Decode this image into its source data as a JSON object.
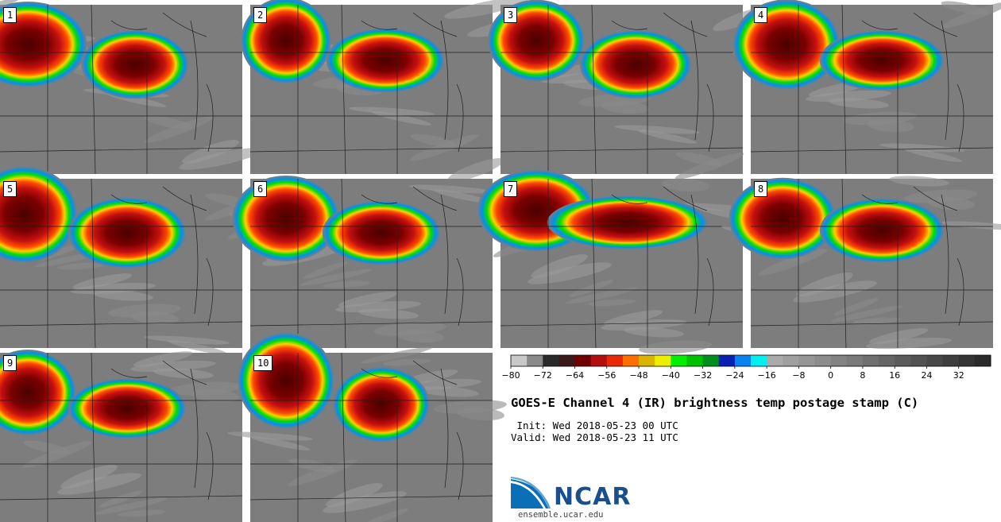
{
  "title": "GOES-E Channel 4 (IR) brightness temp postage stamp (C)",
  "init": " Init: Wed 2018-05-23 00 UTC",
  "valid": "Valid: Wed 2018-05-23 11 UTC",
  "logo": {
    "name": "NCAR",
    "url": "ensemble.ucar.edu"
  },
  "panels": [
    "1",
    "2",
    "3",
    "4",
    "5",
    "6",
    "7",
    "8",
    "9",
    "10"
  ],
  "chart_data": {
    "type": "heatmap",
    "colorbar": {
      "ticks": [
        -80,
        -72,
        -64,
        -56,
        -48,
        -40,
        -32,
        -24,
        -16,
        -8,
        0,
        8,
        16,
        24,
        32
      ],
      "range": [
        -80,
        40
      ],
      "step": 4,
      "colors": [
        "#c8c8c8",
        "#8a8a8a",
        "#2a2a2a",
        "#3d1a1a",
        "#700000",
        "#b40f0f",
        "#e82a0a",
        "#ff6e00",
        "#d9b400",
        "#eeee00",
        "#00f000",
        "#00c000",
        "#008f1e",
        "#0a1fb4",
        "#0a82f0",
        "#00f0f0",
        "#aaaaaa",
        "#a0a0a0",
        "#969696",
        "#8c8c8c",
        "#838383",
        "#7a7a7a",
        "#707070",
        "#666666",
        "#5c5c5c",
        "#525252",
        "#484848",
        "#3e3e3e",
        "#343434",
        "#2a2a2a"
      ]
    }
  }
}
